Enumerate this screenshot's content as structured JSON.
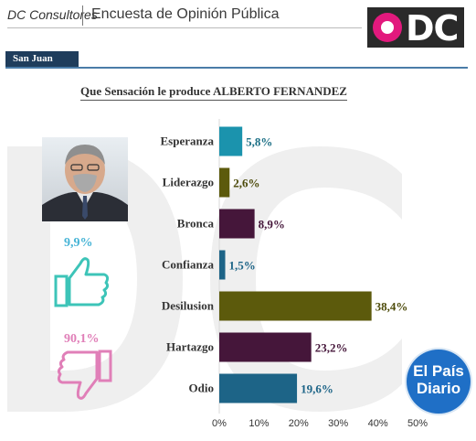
{
  "header": {
    "brand": "DC Consultores",
    "title": "Encuesta de Opinión Pública",
    "logo_text": "DC"
  },
  "region": "San Juan",
  "summary": {
    "positive_pct": "9,9%",
    "negative_pct": "90,1%",
    "positive_color": "#47b4d6",
    "negative_color": "#e07fb8"
  },
  "badge": {
    "line1": "El País",
    "line2": "Diario"
  },
  "chart_data": {
    "type": "bar",
    "orientation": "horizontal",
    "title": "Que Sensación le produce ALBERTO FERNANDEZ",
    "categories": [
      "Esperanza",
      "Liderazgo",
      "Bronca",
      "Confianza",
      "Desilusion",
      "Hartazgo",
      "Odio"
    ],
    "values": [
      5.8,
      2.6,
      8.9,
      1.5,
      38.4,
      23.2,
      19.6
    ],
    "value_labels": [
      "5,8%",
      "2,6%",
      "8,9%",
      "1,5%",
      "38,4%",
      "23,2%",
      "19,6%"
    ],
    "colors": [
      "#1b93ad",
      "#5c5a0c",
      "#45163a",
      "#1d6487",
      "#5c5a0c",
      "#45163a",
      "#1d6487"
    ],
    "label_colors": [
      "#1b6f85",
      "#4d4b0a",
      "#45163a",
      "#1d6487",
      "#4d4b0a",
      "#45163a",
      "#1d6487"
    ],
    "xlim": [
      0,
      50
    ],
    "ticks": [
      0,
      10,
      20,
      30,
      40,
      50
    ],
    "tick_labels": [
      "0%",
      "10%",
      "20%",
      "30%",
      "40%",
      "50%"
    ],
    "grid": false
  }
}
